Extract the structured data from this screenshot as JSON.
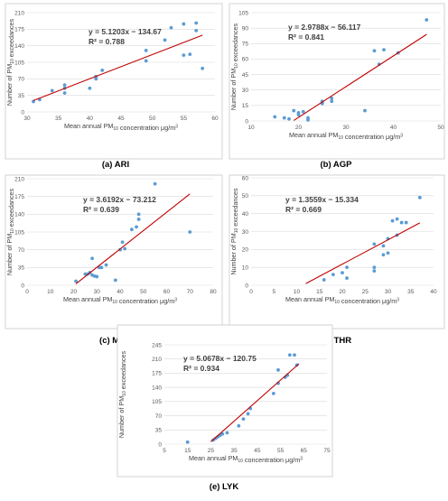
{
  "chart_data": [
    {
      "id": "ari",
      "type": "scatter",
      "caption": "(a) ARI",
      "xlabel": "Mean annual PM10 concentration μg/m³",
      "ylabel": "Number of PM10 exceedances",
      "xlim": [
        30,
        60
      ],
      "ylim": [
        0,
        210
      ],
      "xticks": [
        30,
        35,
        40,
        45,
        50,
        55,
        60
      ],
      "yticks": [
        0,
        35,
        70,
        105,
        140,
        175,
        210
      ],
      "equation": "y = 5.1203x − 134.67",
      "r2": "R² = 0.788",
      "trend": {
        "slope": 5.1203,
        "intercept": -134.67,
        "x_range": [
          31,
          58
        ]
      },
      "points": [
        [
          31,
          22
        ],
        [
          32,
          26
        ],
        [
          34,
          45
        ],
        [
          36,
          40
        ],
        [
          36,
          50
        ],
        [
          36,
          57
        ],
        [
          40,
          50
        ],
        [
          41,
          70
        ],
        [
          41,
          75
        ],
        [
          42,
          88
        ],
        [
          49,
          108
        ],
        [
          49,
          130
        ],
        [
          52,
          152
        ],
        [
          53,
          178
        ],
        [
          55,
          120
        ],
        [
          55,
          186
        ],
        [
          56,
          122
        ],
        [
          57,
          172
        ],
        [
          57,
          188
        ],
        [
          58,
          92
        ]
      ]
    },
    {
      "id": "agp",
      "type": "scatter",
      "caption": "(b) AGP",
      "xlabel": "Mean annual PM10 concentration μg/m³",
      "ylabel": "Number of PM10 exceedances",
      "xlim": [
        10,
        50
      ],
      "ylim": [
        0,
        105
      ],
      "xticks": [
        10,
        20,
        30,
        40,
        50
      ],
      "yticks": [
        0,
        15,
        30,
        45,
        60,
        75,
        90,
        105
      ],
      "equation": "y = 2.9788x − 56.117",
      "r2": "R² = 0.841",
      "trend": {
        "slope": 2.9788,
        "intercept": -56.117,
        "x_range": [
          19,
          47
        ]
      },
      "points": [
        [
          15,
          4
        ],
        [
          17,
          3
        ],
        [
          18,
          2
        ],
        [
          19,
          10
        ],
        [
          20,
          6
        ],
        [
          20,
          8
        ],
        [
          21,
          9
        ],
        [
          22,
          1
        ],
        [
          22,
          3
        ],
        [
          25,
          17
        ],
        [
          25,
          18
        ],
        [
          25,
          19
        ],
        [
          27,
          19
        ],
        [
          27,
          22
        ],
        [
          34,
          10
        ],
        [
          36,
          68
        ],
        [
          37,
          55
        ],
        [
          38,
          69
        ],
        [
          41,
          66
        ],
        [
          47,
          98
        ]
      ]
    },
    {
      "id": "mar",
      "type": "scatter",
      "caption": "(c) MAR",
      "xlabel": "Mean annual PM10 concentration μg/m³",
      "ylabel": "Number of PM10 exceedances",
      "xlim": [
        0,
        80
      ],
      "ylim": [
        0,
        210
      ],
      "xticks": [
        0,
        10,
        20,
        30,
        40,
        50,
        60,
        70,
        80
      ],
      "yticks": [
        0,
        35,
        70,
        105,
        140,
        175,
        210
      ],
      "equation": "y = 3.6192x − 73.212",
      "r2": "R² = 0.639",
      "trend": {
        "slope": 3.6192,
        "intercept": -73.212,
        "x_range": [
          21,
          70
        ]
      },
      "points": [
        [
          21,
          8
        ],
        [
          25,
          22
        ],
        [
          26,
          22
        ],
        [
          27,
          25
        ],
        [
          28,
          53
        ],
        [
          28,
          20
        ],
        [
          29,
          18
        ],
        [
          30,
          17
        ],
        [
          31,
          35
        ],
        [
          32,
          35
        ],
        [
          34,
          40
        ],
        [
          38,
          10
        ],
        [
          40,
          70
        ],
        [
          41,
          85
        ],
        [
          42,
          72
        ],
        [
          45,
          110
        ],
        [
          47,
          115
        ],
        [
          48,
          130
        ],
        [
          48,
          140
        ],
        [
          55,
          200
        ],
        [
          70,
          105
        ]
      ]
    },
    {
      "id": "thr",
      "type": "scatter",
      "caption": "(d) THR",
      "xlabel": "Mean annual PM10 concentration μg/m³",
      "ylabel": "Number of PM10 exceedances",
      "xlim": [
        0,
        40
      ],
      "ylim": [
        0,
        60
      ],
      "xticks": [
        0,
        5,
        10,
        15,
        20,
        25,
        30,
        35,
        40
      ],
      "yticks": [
        0,
        10,
        20,
        30,
        40,
        50,
        60
      ],
      "equation": "y = 1.3559x − 15.334",
      "r2": "R² = 0.669",
      "trend": {
        "slope": 1.3559,
        "intercept": -15.334,
        "x_range": [
          12,
          37
        ]
      },
      "points": [
        [
          16,
          3
        ],
        [
          18,
          6
        ],
        [
          20,
          7
        ],
        [
          21,
          4
        ],
        [
          21,
          10
        ],
        [
          27,
          8
        ],
        [
          27,
          10
        ],
        [
          27,
          23
        ],
        [
          29,
          17
        ],
        [
          29,
          22
        ],
        [
          30,
          18
        ],
        [
          30,
          26
        ],
        [
          31,
          36
        ],
        [
          32,
          37
        ],
        [
          32,
          28
        ],
        [
          33,
          35
        ],
        [
          34,
          35
        ],
        [
          37,
          49
        ]
      ]
    },
    {
      "id": "lyk",
      "type": "scatter",
      "caption": "(e) LYK",
      "xlabel": "Mean annual PM10 concentration μg/m³",
      "ylabel": "Number of PM10 exceedances",
      "xlim": [
        5,
        75
      ],
      "ylim": [
        0,
        245
      ],
      "xticks": [
        5,
        15,
        25,
        35,
        45,
        55,
        65,
        75
      ],
      "yticks": [
        0,
        35,
        70,
        105,
        140,
        175,
        210,
        245
      ],
      "equation": "y = 5.0678x − 120.75",
      "r2": "R² = 0.934",
      "trend": {
        "slope": 5.0678,
        "intercept": -120.75,
        "x_range": [
          25,
          63
        ]
      },
      "points": [
        [
          15,
          5
        ],
        [
          26,
          10
        ],
        [
          27,
          14
        ],
        [
          28,
          18
        ],
        [
          29,
          22
        ],
        [
          30,
          25
        ],
        [
          32,
          28
        ],
        [
          37,
          45
        ],
        [
          39,
          62
        ],
        [
          41,
          75
        ],
        [
          42,
          88
        ],
        [
          52,
          125
        ],
        [
          54,
          150
        ],
        [
          54,
          183
        ],
        [
          57,
          165
        ],
        [
          58,
          170
        ],
        [
          59,
          220
        ],
        [
          61,
          220
        ],
        [
          62,
          195
        ]
      ]
    }
  ]
}
